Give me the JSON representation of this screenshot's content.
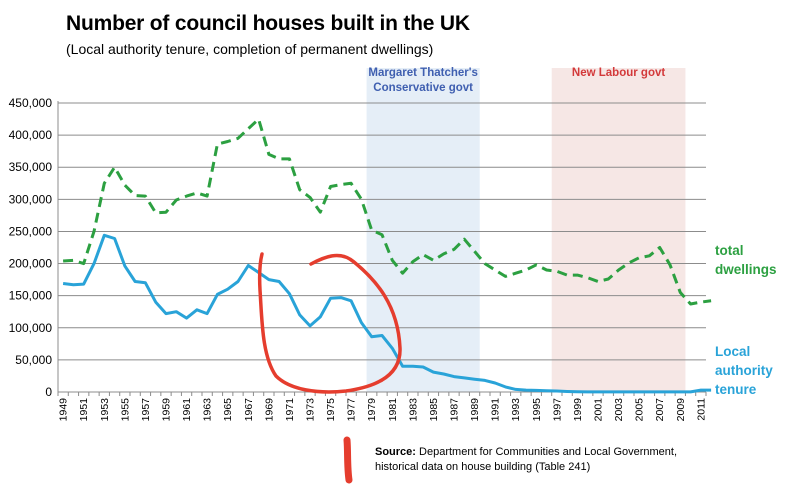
{
  "chart_data": {
    "type": "line",
    "title": "Number of council houses built in the UK",
    "subtitle": "(Local authority tenure, completion of permanent dwellings)",
    "xlabel": "",
    "ylabel": "",
    "ylim": [
      0,
      450000
    ],
    "yticks": [
      0,
      50000,
      100000,
      150000,
      200000,
      250000,
      300000,
      350000,
      400000,
      450000
    ],
    "ytick_labels": [
      "0",
      "50,000",
      "100,000",
      "150,000",
      "200,000",
      "250,000",
      "300,000",
      "350,000",
      "400,000",
      "450,000"
    ],
    "xlim": [
      1949,
      2012
    ],
    "xtick_labels": [
      "1949",
      "1951",
      "1953",
      "1955",
      "1957",
      "1959",
      "1961",
      "1963",
      "1965",
      "1967",
      "1969",
      "1971",
      "1973",
      "1975",
      "1977",
      "1979",
      "1981",
      "1983",
      "1985",
      "1987",
      "1989",
      "1991",
      "1993",
      "1995",
      "1997",
      "1999",
      "2001",
      "2003",
      "2005",
      "2007",
      "2009",
      "2011"
    ],
    "x": [
      1949,
      1950,
      1951,
      1952,
      1953,
      1954,
      1955,
      1956,
      1957,
      1958,
      1959,
      1960,
      1961,
      1962,
      1963,
      1964,
      1965,
      1966,
      1967,
      1968,
      1969,
      1970,
      1971,
      1972,
      1973,
      1974,
      1975,
      1976,
      1977,
      1978,
      1979,
      1980,
      1981,
      1982,
      1983,
      1984,
      1985,
      1986,
      1987,
      1988,
      1989,
      1990,
      1991,
      1992,
      1993,
      1994,
      1995,
      1996,
      1997,
      1998,
      1999,
      2000,
      2001,
      2002,
      2003,
      2004,
      2005,
      2006,
      2007,
      2008,
      2009,
      2010,
      2011,
      2012
    ],
    "series": [
      {
        "name": "total dwellings",
        "label_lines": [
          "total",
          "dwellings"
        ],
        "color": "#2ca041",
        "style": "dashed",
        "values": [
          204000,
          205000,
          200000,
          250000,
          325000,
          350000,
          322000,
          306000,
          305000,
          279000,
          280000,
          299000,
          305000,
          310000,
          305000,
          386000,
          390000,
          395000,
          410000,
          425000,
          370000,
          363000,
          363000,
          315000,
          303000,
          280000,
          320000,
          323000,
          325000,
          300000,
          252000,
          245000,
          205000,
          185000,
          203000,
          214000,
          205000,
          215000,
          222000,
          238000,
          219000,
          200000,
          190000,
          180000,
          185000,
          190000,
          198000,
          190000,
          188000,
          182000,
          182000,
          178000,
          172000,
          176000,
          190000,
          201000,
          209000,
          212000,
          225000,
          198000,
          155000,
          137000,
          140000,
          142000
        ]
      },
      {
        "name": "Local authority tenure",
        "label_lines": [
          "Local",
          "authority",
          "tenure"
        ],
        "color": "#29a3d8",
        "style": "solid",
        "values": [
          169000,
          167000,
          168000,
          200000,
          244000,
          239000,
          196000,
          172000,
          170000,
          140000,
          122000,
          125000,
          115000,
          128000,
          122000,
          152000,
          160000,
          172000,
          197000,
          186000,
          175000,
          172000,
          153000,
          120000,
          103000,
          117000,
          146000,
          147000,
          142000,
          108000,
          86000,
          88000,
          68000,
          40000,
          40000,
          39000,
          31000,
          28000,
          24000,
          22000,
          20000,
          18000,
          14000,
          8000,
          4000,
          3000,
          2500,
          2000,
          1500,
          800,
          300,
          200,
          200,
          200,
          200,
          200,
          200,
          200,
          200,
          200,
          200,
          200,
          3000,
          3000
        ]
      }
    ],
    "shaded_periods": [
      {
        "label_lines": [
          "Margaret Thatcher's",
          "Conservative govt"
        ],
        "start": 1979,
        "end": 1990,
        "color": "#e5eef7",
        "label_color": "#3f5fb0"
      },
      {
        "label_lines": [
          "New Labour govt"
        ],
        "start": 1997,
        "end": 2010,
        "color": "#f6e7e5",
        "label_color": "#d3393a"
      }
    ],
    "annotations": [
      {
        "type": "hand-drawn circle",
        "color": "#e53d2e"
      },
      {
        "type": "hand-drawn mark",
        "color": "#e53d2e"
      }
    ]
  },
  "source": {
    "label": "Source:",
    "text": " Department for Communities and Local Government, historical data on house building (Table 241)"
  }
}
